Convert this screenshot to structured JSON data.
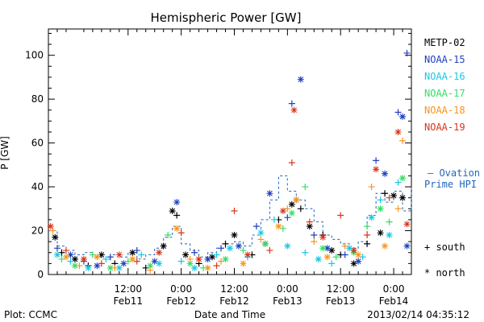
{
  "chart_data": {
    "type": "scatter",
    "title": "Hemispheric Power [GW]",
    "xlabel": "Date and Time",
    "ylabel": "P [GW]",
    "footer_left": "Plot: CCMC",
    "footer_right": "2013/02/14 04:35:12",
    "x_unit": "hours after 2013-02-10 18:00",
    "xlim": [
      0,
      82
    ],
    "ylim": [
      0,
      112
    ],
    "yticks": [
      0,
      20,
      40,
      60,
      80,
      100
    ],
    "xticks": [
      {
        "x": 18,
        "line1": "12:00",
        "line2": "Feb11"
      },
      {
        "x": 30,
        "line1": "0:00",
        "line2": "Feb12"
      },
      {
        "x": 42,
        "line1": "12:00",
        "line2": "Feb12"
      },
      {
        "x": 54,
        "line1": "0:00",
        "line2": "Feb13"
      },
      {
        "x": 66,
        "line1": "12:00",
        "line2": "Feb13"
      },
      {
        "x": 78,
        "line1": "0:00",
        "line2": "Feb14"
      }
    ],
    "marker_legend": {
      "south": "+ south",
      "north": "* north"
    },
    "series": [
      {
        "name": "METP-02",
        "color": "#000000",
        "points": [
          [
            1.5,
            17,
            "n"
          ],
          [
            3,
            10,
            "s"
          ],
          [
            6,
            7,
            "n"
          ],
          [
            9,
            4,
            "s"
          ],
          [
            12,
            9,
            "n"
          ],
          [
            15,
            5,
            "s"
          ],
          [
            19,
            10,
            "n"
          ],
          [
            22,
            3,
            "s"
          ],
          [
            26,
            13,
            "n"
          ],
          [
            28,
            29,
            "n"
          ],
          [
            29,
            27,
            "s"
          ],
          [
            31,
            9,
            "n"
          ],
          [
            34,
            5,
            "s"
          ],
          [
            37,
            8,
            "n"
          ],
          [
            40,
            14,
            "s"
          ],
          [
            42,
            18,
            "n"
          ],
          [
            46,
            9,
            "s"
          ],
          [
            49,
            14,
            "n"
          ],
          [
            52,
            25,
            "s"
          ],
          [
            55,
            32,
            "n"
          ],
          [
            57,
            30,
            "s"
          ],
          [
            59,
            22,
            "n"
          ],
          [
            62,
            18,
            "s"
          ],
          [
            64,
            11,
            "n"
          ],
          [
            66,
            9,
            "s"
          ],
          [
            69,
            5,
            "n"
          ],
          [
            72,
            14,
            "s"
          ],
          [
            75,
            19,
            "n"
          ],
          [
            76,
            37,
            "s"
          ],
          [
            78,
            36,
            "n"
          ],
          [
            80,
            35,
            "n"
          ]
        ]
      },
      {
        "name": "NOAA-15",
        "color": "#1f3fbf",
        "points": [
          [
            2,
            12,
            "s"
          ],
          [
            5,
            9,
            "n"
          ],
          [
            8,
            6,
            "s"
          ],
          [
            11,
            4,
            "n"
          ],
          [
            14,
            8,
            "s"
          ],
          [
            17,
            5,
            "n"
          ],
          [
            20,
            11,
            "s"
          ],
          [
            24,
            6,
            "n"
          ],
          [
            29,
            33,
            "n"
          ],
          [
            33,
            10,
            "s"
          ],
          [
            36,
            7,
            "n"
          ],
          [
            39,
            12,
            "s"
          ],
          [
            43,
            13,
            "n"
          ],
          [
            47,
            22,
            "s"
          ],
          [
            50,
            37,
            "n"
          ],
          [
            54,
            26,
            "s"
          ],
          [
            55,
            78,
            "s"
          ],
          [
            56,
            34,
            "n"
          ],
          [
            57,
            89,
            "n"
          ],
          [
            60,
            18,
            "s"
          ],
          [
            63,
            12,
            "n"
          ],
          [
            67,
            9,
            "s"
          ],
          [
            70,
            6,
            "n"
          ],
          [
            74,
            52,
            "s"
          ],
          [
            76,
            46,
            "n"
          ],
          [
            79,
            74,
            "s"
          ],
          [
            80,
            72,
            "n"
          ],
          [
            81,
            101,
            "s"
          ],
          [
            81,
            13,
            "n"
          ]
        ]
      },
      {
        "name": "NOAA-16",
        "color": "#19c8e6",
        "points": [
          [
            2,
            9,
            "n"
          ],
          [
            5,
            6,
            "s"
          ],
          [
            9,
            3,
            "n"
          ],
          [
            13,
            7,
            "s"
          ],
          [
            16,
            3,
            "n"
          ],
          [
            21,
            9,
            "s"
          ],
          [
            25,
            5,
            "n"
          ],
          [
            30,
            6,
            "s"
          ],
          [
            33,
            3,
            "n"
          ],
          [
            38,
            9,
            "s"
          ],
          [
            41,
            12,
            "n"
          ],
          [
            45,
            8,
            "s"
          ],
          [
            48,
            19,
            "n"
          ],
          [
            51,
            25,
            "s"
          ],
          [
            54,
            13,
            "n"
          ],
          [
            58,
            10,
            "s"
          ],
          [
            61,
            7,
            "n"
          ],
          [
            64,
            5,
            "s"
          ],
          [
            68,
            12,
            "n"
          ],
          [
            71,
            8,
            "s"
          ],
          [
            73,
            26,
            "n"
          ],
          [
            75,
            34,
            "s"
          ],
          [
            77,
            18,
            "n"
          ],
          [
            79,
            42,
            "s"
          ]
        ]
      },
      {
        "name": "NOAA-17",
        "color": "#33dd66",
        "points": [
          [
            3,
            7,
            "s"
          ],
          [
            6,
            4,
            "n"
          ],
          [
            10,
            9,
            "s"
          ],
          [
            14,
            3,
            "n"
          ],
          [
            18,
            6,
            "s"
          ],
          [
            23,
            4,
            "n"
          ],
          [
            27,
            18,
            "s"
          ],
          [
            32,
            5,
            "n"
          ],
          [
            35,
            3,
            "s"
          ],
          [
            40,
            7,
            "n"
          ],
          [
            44,
            11,
            "s"
          ],
          [
            49,
            14,
            "n"
          ],
          [
            53,
            21,
            "s"
          ],
          [
            55,
            28,
            "n"
          ],
          [
            58,
            40,
            "s"
          ],
          [
            62,
            12,
            "n"
          ],
          [
            65,
            8,
            "s"
          ],
          [
            69,
            10,
            "n"
          ],
          [
            72,
            22,
            "s"
          ],
          [
            75,
            30,
            "n"
          ],
          [
            77,
            24,
            "s"
          ],
          [
            80,
            44,
            "n"
          ]
        ]
      },
      {
        "name": "NOAA-18",
        "color": "#f5961e",
        "points": [
          [
            1,
            20,
            "s"
          ],
          [
            4,
            8,
            "n"
          ],
          [
            7,
            4,
            "s"
          ],
          [
            11,
            8,
            "n"
          ],
          [
            15,
            3,
            "s"
          ],
          [
            19,
            7,
            "n"
          ],
          [
            23,
            2,
            "s"
          ],
          [
            29,
            21,
            "n"
          ],
          [
            32,
            7,
            "s"
          ],
          [
            36,
            3,
            "n"
          ],
          [
            39,
            6,
            "s"
          ],
          [
            44,
            5,
            "n"
          ],
          [
            48,
            16,
            "s"
          ],
          [
            52,
            22,
            "n"
          ],
          [
            54,
            30,
            "s"
          ],
          [
            56,
            34,
            "n"
          ],
          [
            60,
            15,
            "s"
          ],
          [
            63,
            8,
            "n"
          ],
          [
            67,
            13,
            "s"
          ],
          [
            70,
            9,
            "n"
          ],
          [
            73,
            40,
            "s"
          ],
          [
            76,
            13,
            "n"
          ],
          [
            79,
            30,
            "s"
          ],
          [
            80,
            61,
            "s"
          ]
        ]
      },
      {
        "name": "NOAA-19",
        "color": "#d7361e",
        "points": [
          [
            0.5,
            22,
            "n"
          ],
          [
            4,
            11,
            "s"
          ],
          [
            8,
            7,
            "n"
          ],
          [
            12,
            5,
            "s"
          ],
          [
            16,
            9,
            "n"
          ],
          [
            20,
            6,
            "s"
          ],
          [
            25,
            10,
            "n"
          ],
          [
            30,
            19,
            "s"
          ],
          [
            34,
            7,
            "n"
          ],
          [
            38,
            4,
            "s"
          ],
          [
            42,
            29,
            "s"
          ],
          [
            45,
            9,
            "n"
          ],
          [
            50,
            11,
            "s"
          ],
          [
            53,
            29,
            "n"
          ],
          [
            55,
            51,
            "s"
          ],
          [
            55.5,
            75,
            "n"
          ],
          [
            59,
            24,
            "s"
          ],
          [
            62,
            17,
            "n"
          ],
          [
            66,
            27,
            "s"
          ],
          [
            69,
            11,
            "n"
          ],
          [
            72,
            18,
            "s"
          ],
          [
            74,
            48,
            "n"
          ],
          [
            77,
            35,
            "s"
          ],
          [
            79,
            65,
            "n"
          ],
          [
            81,
            23,
            "n"
          ]
        ]
      }
    ]
  },
  "ovation": {
    "label_line1": "— Ovation",
    "label_line2": "Prime HPI",
    "color": "#1f66bf",
    "values": [
      [
        0,
        20
      ],
      [
        2,
        13
      ],
      [
        4,
        11
      ],
      [
        6,
        9
      ],
      [
        8,
        10
      ],
      [
        10,
        8
      ],
      [
        12,
        7
      ],
      [
        14,
        9
      ],
      [
        16,
        8
      ],
      [
        18,
        10
      ],
      [
        20,
        7
      ],
      [
        22,
        9
      ],
      [
        24,
        12
      ],
      [
        26,
        17
      ],
      [
        28,
        22
      ],
      [
        30,
        14
      ],
      [
        32,
        11
      ],
      [
        34,
        8
      ],
      [
        36,
        10
      ],
      [
        38,
        12
      ],
      [
        40,
        14
      ],
      [
        42,
        15
      ],
      [
        44,
        13
      ],
      [
        46,
        18
      ],
      [
        48,
        25
      ],
      [
        50,
        34
      ],
      [
        52,
        45
      ],
      [
        54,
        38
      ],
      [
        56,
        34
      ],
      [
        58,
        30
      ],
      [
        60,
        24
      ],
      [
        62,
        18
      ],
      [
        64,
        16
      ],
      [
        66,
        14
      ],
      [
        68,
        12
      ],
      [
        70,
        15
      ],
      [
        72,
        27
      ],
      [
        74,
        37
      ],
      [
        76,
        33
      ],
      [
        78,
        38
      ],
      [
        80,
        29
      ],
      [
        82,
        40
      ]
    ]
  }
}
